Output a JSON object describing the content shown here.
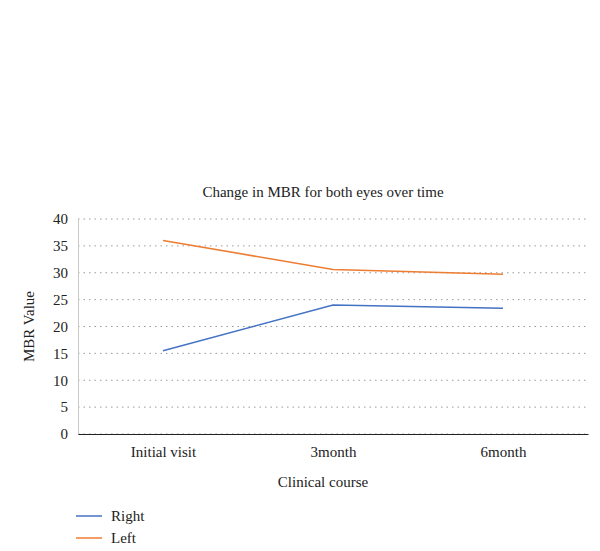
{
  "chart_data": {
    "type": "line",
    "title": "Change in MBR for both eyes over time",
    "x_label": "Clinical course",
    "y_label": "MBR Value",
    "categories": [
      "Initial visit",
      "3month",
      "6month"
    ],
    "series": [
      {
        "name": "Right",
        "color": "#4472c4",
        "values": [
          15.5,
          24.0,
          23.4
        ]
      },
      {
        "name": "Left",
        "color": "#ed7d31",
        "values": [
          36.0,
          30.6,
          29.7
        ]
      }
    ],
    "ylim": [
      0,
      40
    ],
    "yticks": [
      0,
      5,
      10,
      15,
      20,
      25,
      30,
      35,
      40
    ],
    "grid": true,
    "legend": "bottom-left"
  }
}
